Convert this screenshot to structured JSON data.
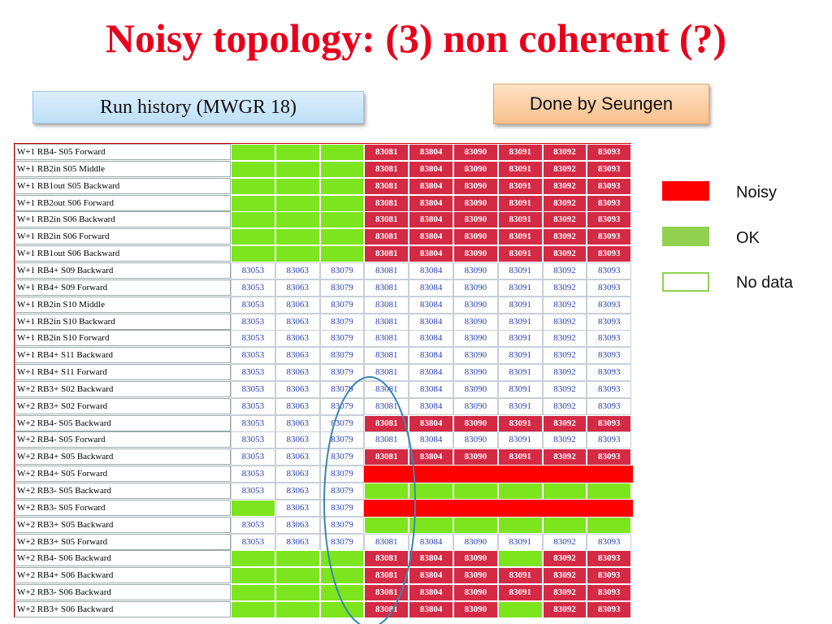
{
  "title": "Noisy topology: (3) non coherent (?)",
  "run_history_label": "Run history  (MWGR 18)",
  "done_by_label": "Done by Seungen",
  "colors": {
    "noisy": "#d42a45",
    "ok": "#7ce51d",
    "bar_red": "#ff0000",
    "title": "#e8001c"
  },
  "legend": [
    {
      "label": "Noisy",
      "color": "#ff0000"
    },
    {
      "label": "OK",
      "color": "#92d050"
    },
    {
      "label": "No data",
      "color": "#ffffff"
    }
  ],
  "rows": [
    {
      "label": "W+1 RB4- S05 Forward",
      "cells": [
        [
          "",
          "ok"
        ],
        [
          "",
          "ok"
        ],
        [
          "",
          "ok"
        ],
        [
          "83081",
          "noisy"
        ],
        [
          "83804",
          "noisy"
        ],
        [
          "83090",
          "noisy"
        ],
        [
          "83091",
          "noisy"
        ],
        [
          "83092",
          "noisy"
        ],
        [
          "83093",
          "noisy"
        ]
      ]
    },
    {
      "label": "W+1 RB2in S05 Middle",
      "cells": [
        [
          "",
          "ok"
        ],
        [
          "",
          "ok"
        ],
        [
          "",
          "ok"
        ],
        [
          "83081",
          "noisy"
        ],
        [
          "83804",
          "noisy"
        ],
        [
          "83090",
          "noisy"
        ],
        [
          "83091",
          "noisy"
        ],
        [
          "83092",
          "noisy"
        ],
        [
          "83093",
          "noisy"
        ]
      ]
    },
    {
      "label": "W+1 RB1out S05 Backward",
      "cells": [
        [
          "",
          "ok"
        ],
        [
          "",
          "ok"
        ],
        [
          "",
          "ok"
        ],
        [
          "83081",
          "noisy"
        ],
        [
          "83804",
          "noisy"
        ],
        [
          "83090",
          "noisy"
        ],
        [
          "83091",
          "noisy"
        ],
        [
          "83092",
          "noisy"
        ],
        [
          "83093",
          "noisy"
        ]
      ]
    },
    {
      "label": "W+1 RB2out S06 Forward",
      "cells": [
        [
          "",
          "ok"
        ],
        [
          "",
          "ok"
        ],
        [
          "",
          "ok"
        ],
        [
          "83081",
          "noisy"
        ],
        [
          "83804",
          "noisy"
        ],
        [
          "83090",
          "noisy"
        ],
        [
          "83091",
          "noisy"
        ],
        [
          "83092",
          "noisy"
        ],
        [
          "83093",
          "noisy"
        ]
      ]
    },
    {
      "label": "W+1 RB2in S06 Backward",
      "cells": [
        [
          "",
          "ok"
        ],
        [
          "",
          "ok"
        ],
        [
          "",
          "ok"
        ],
        [
          "83081",
          "noisy"
        ],
        [
          "83804",
          "noisy"
        ],
        [
          "83090",
          "noisy"
        ],
        [
          "83091",
          "noisy"
        ],
        [
          "83092",
          "noisy"
        ],
        [
          "83093",
          "noisy"
        ]
      ]
    },
    {
      "label": "W+1 RB2in S06 Forward",
      "cells": [
        [
          "",
          "ok"
        ],
        [
          "",
          "ok"
        ],
        [
          "",
          "ok"
        ],
        [
          "83081",
          "noisy"
        ],
        [
          "83804",
          "noisy"
        ],
        [
          "83090",
          "noisy"
        ],
        [
          "83091",
          "noisy"
        ],
        [
          "83092",
          "noisy"
        ],
        [
          "83093",
          "noisy"
        ]
      ]
    },
    {
      "label": "W+1 RB1out S06 Backward",
      "cells": [
        [
          "",
          "ok"
        ],
        [
          "",
          "ok"
        ],
        [
          "",
          "ok"
        ],
        [
          "83081",
          "noisy"
        ],
        [
          "83804",
          "noisy"
        ],
        [
          "83090",
          "noisy"
        ],
        [
          "83091",
          "noisy"
        ],
        [
          "83092",
          "noisy"
        ],
        [
          "83093",
          "noisy"
        ]
      ]
    },
    {
      "label": "W+1 RB4+ S09 Backward",
      "cells": [
        [
          "83053",
          ""
        ],
        [
          "83063",
          ""
        ],
        [
          "83079",
          ""
        ],
        [
          "83081",
          ""
        ],
        [
          "83084",
          ""
        ],
        [
          "83090",
          ""
        ],
        [
          "83091",
          ""
        ],
        [
          "83092",
          ""
        ],
        [
          "83093",
          ""
        ]
      ]
    },
    {
      "label": "W+1 RB4+ S09 Forward",
      "cells": [
        [
          "83053",
          ""
        ],
        [
          "83063",
          ""
        ],
        [
          "83079",
          ""
        ],
        [
          "83081",
          ""
        ],
        [
          "83084",
          ""
        ],
        [
          "83090",
          ""
        ],
        [
          "83091",
          ""
        ],
        [
          "83092",
          ""
        ],
        [
          "83093",
          ""
        ]
      ]
    },
    {
      "label": "W+1 RB2in S10 Middle",
      "cells": [
        [
          "83053",
          ""
        ],
        [
          "83063",
          ""
        ],
        [
          "83079",
          ""
        ],
        [
          "83081",
          ""
        ],
        [
          "83084",
          ""
        ],
        [
          "83090",
          ""
        ],
        [
          "83091",
          ""
        ],
        [
          "83092",
          ""
        ],
        [
          "83093",
          ""
        ]
      ]
    },
    {
      "label": "W+1 RB2in S10 Backward",
      "cells": [
        [
          "83053",
          ""
        ],
        [
          "83063",
          ""
        ],
        [
          "83079",
          ""
        ],
        [
          "83081",
          ""
        ],
        [
          "83084",
          ""
        ],
        [
          "83090",
          ""
        ],
        [
          "83091",
          ""
        ],
        [
          "83092",
          ""
        ],
        [
          "83093",
          ""
        ]
      ]
    },
    {
      "label": "W+1 RB2in S10 Forward",
      "cells": [
        [
          "83053",
          ""
        ],
        [
          "83063",
          ""
        ],
        [
          "83079",
          ""
        ],
        [
          "83081",
          ""
        ],
        [
          "83084",
          ""
        ],
        [
          "83090",
          ""
        ],
        [
          "83091",
          ""
        ],
        [
          "83092",
          ""
        ],
        [
          "83093",
          ""
        ]
      ]
    },
    {
      "label": "W+1 RB4+ S11 Backward",
      "cells": [
        [
          "83053",
          ""
        ],
        [
          "83063",
          ""
        ],
        [
          "83079",
          ""
        ],
        [
          "83081",
          ""
        ],
        [
          "83084",
          ""
        ],
        [
          "83090",
          ""
        ],
        [
          "83091",
          ""
        ],
        [
          "83092",
          ""
        ],
        [
          "83093",
          ""
        ]
      ]
    },
    {
      "label": "W+1 RB4+ S11 Forward",
      "cells": [
        [
          "83053",
          ""
        ],
        [
          "83063",
          ""
        ],
        [
          "83079",
          ""
        ],
        [
          "83081",
          ""
        ],
        [
          "83084",
          ""
        ],
        [
          "83090",
          ""
        ],
        [
          "83091",
          ""
        ],
        [
          "83092",
          ""
        ],
        [
          "83093",
          ""
        ]
      ]
    },
    {
      "label": "W+2 RB3+ S02 Backward",
      "cells": [
        [
          "83053",
          ""
        ],
        [
          "83063",
          ""
        ],
        [
          "83079",
          ""
        ],
        [
          "83081",
          ""
        ],
        [
          "83084",
          ""
        ],
        [
          "83090",
          ""
        ],
        [
          "83091",
          ""
        ],
        [
          "83092",
          ""
        ],
        [
          "83093",
          ""
        ]
      ]
    },
    {
      "label": "W+2 RB3+ S02 Forward",
      "cells": [
        [
          "83053",
          ""
        ],
        [
          "83063",
          ""
        ],
        [
          "83079",
          ""
        ],
        [
          "83081",
          ""
        ],
        [
          "83084",
          ""
        ],
        [
          "83090",
          ""
        ],
        [
          "83091",
          ""
        ],
        [
          "83092",
          ""
        ],
        [
          "83093",
          ""
        ]
      ]
    },
    {
      "label": "W+2 RB4- S05 Backward",
      "cells": [
        [
          "83053",
          ""
        ],
        [
          "83063",
          ""
        ],
        [
          "83079",
          ""
        ],
        [
          "83081",
          "noisy"
        ],
        [
          "83804",
          "noisy"
        ],
        [
          "83090",
          "noisy"
        ],
        [
          "83091",
          "noisy"
        ],
        [
          "83092",
          "noisy"
        ],
        [
          "83093",
          "noisy"
        ]
      ]
    },
    {
      "label": "W+2 RB4- S05 Forward",
      "cells": [
        [
          "83053",
          ""
        ],
        [
          "83063",
          ""
        ],
        [
          "83079",
          ""
        ],
        [
          "83081",
          ""
        ],
        [
          "83084",
          ""
        ],
        [
          "83090",
          ""
        ],
        [
          "83091",
          ""
        ],
        [
          "83092",
          ""
        ],
        [
          "83093",
          ""
        ]
      ]
    },
    {
      "label": "W+2 RB4+ S05 Backward",
      "cells": [
        [
          "83053",
          ""
        ],
        [
          "83063",
          ""
        ],
        [
          "83079",
          ""
        ],
        [
          "83081",
          "noisy"
        ],
        [
          "83804",
          "noisy"
        ],
        [
          "83090",
          "noisy"
        ],
        [
          "83091",
          "noisy"
        ],
        [
          "83092",
          "noisy"
        ],
        [
          "83093",
          "noisy"
        ]
      ]
    },
    {
      "label": "W+2 RB4+ S05 Forward",
      "cells": [
        [
          "83053",
          ""
        ],
        [
          "83063",
          ""
        ],
        [
          "83079",
          ""
        ],
        [
          "",
          "redbar"
        ],
        [
          "",
          "redbar"
        ],
        [
          "",
          "redbar"
        ],
        [
          "",
          "redbar"
        ],
        [
          "",
          "redbar"
        ],
        [
          "",
          "redbar"
        ]
      ]
    },
    {
      "label": "W+2 RB3- S05 Backward",
      "cells": [
        [
          "83053",
          ""
        ],
        [
          "83063",
          ""
        ],
        [
          "83079",
          ""
        ],
        [
          "",
          "ok"
        ],
        [
          "",
          "ok"
        ],
        [
          "",
          "ok"
        ],
        [
          "",
          "ok"
        ],
        [
          "",
          "ok"
        ],
        [
          "",
          "ok"
        ]
      ]
    },
    {
      "label": "W+2 RB3- S05 Forward",
      "cells": [
        [
          "",
          "ok"
        ],
        [
          "83063",
          ""
        ],
        [
          "83079",
          ""
        ],
        [
          "",
          "redbar"
        ],
        [
          "",
          "redbar"
        ],
        [
          "",
          "redbar"
        ],
        [
          "",
          "redbar"
        ],
        [
          "",
          "redbar"
        ],
        [
          "",
          "redbar"
        ]
      ]
    },
    {
      "label": "W+2 RB3+ S05 Backward",
      "cells": [
        [
          "83053",
          ""
        ],
        [
          "83063",
          ""
        ],
        [
          "83079",
          ""
        ],
        [
          "",
          "ok"
        ],
        [
          "",
          "ok"
        ],
        [
          "",
          "ok"
        ],
        [
          "",
          "ok"
        ],
        [
          "",
          "ok"
        ],
        [
          "",
          "ok"
        ]
      ]
    },
    {
      "label": "W+2 RB3+ S05 Forward",
      "cells": [
        [
          "83053",
          ""
        ],
        [
          "83063",
          ""
        ],
        [
          "83079",
          ""
        ],
        [
          "83081",
          ""
        ],
        [
          "83084",
          ""
        ],
        [
          "83090",
          ""
        ],
        [
          "83091",
          ""
        ],
        [
          "83092",
          ""
        ],
        [
          "83093",
          ""
        ]
      ]
    },
    {
      "label": "W+2 RB4- S06 Backward",
      "cells": [
        [
          "",
          "ok"
        ],
        [
          "",
          "ok"
        ],
        [
          "",
          "ok"
        ],
        [
          "83081",
          "noisy"
        ],
        [
          "83804",
          "noisy"
        ],
        [
          "83090",
          "noisy"
        ],
        [
          "",
          "ok"
        ],
        [
          "83092",
          "noisy"
        ],
        [
          "83093",
          "noisy"
        ]
      ]
    },
    {
      "label": "W+2 RB4+ S06 Backward",
      "cells": [
        [
          "",
          "ok"
        ],
        [
          "",
          "ok"
        ],
        [
          "",
          "ok"
        ],
        [
          "83081",
          "noisy"
        ],
        [
          "83804",
          "noisy"
        ],
        [
          "83090",
          "noisy"
        ],
        [
          "83091",
          "noisy"
        ],
        [
          "83092",
          "noisy"
        ],
        [
          "83093",
          "noisy"
        ]
      ]
    },
    {
      "label": "W+2 RB3- S06 Backward",
      "cells": [
        [
          "",
          "ok"
        ],
        [
          "",
          "ok"
        ],
        [
          "",
          "ok"
        ],
        [
          "83081",
          "noisy"
        ],
        [
          "83804",
          "noisy"
        ],
        [
          "83090",
          "noisy"
        ],
        [
          "83091",
          "noisy"
        ],
        [
          "83092",
          "noisy"
        ],
        [
          "83093",
          "noisy"
        ]
      ]
    },
    {
      "label": "W+2 RB3+ S06 Backward",
      "cells": [
        [
          "",
          "ok"
        ],
        [
          "",
          "ok"
        ],
        [
          "",
          "ok"
        ],
        [
          "83081",
          "noisy"
        ],
        [
          "83804",
          "noisy"
        ],
        [
          "83090",
          "noisy"
        ],
        [
          "",
          "ok"
        ],
        [
          "83092",
          "noisy"
        ],
        [
          "83093",
          "noisy"
        ]
      ]
    }
  ]
}
